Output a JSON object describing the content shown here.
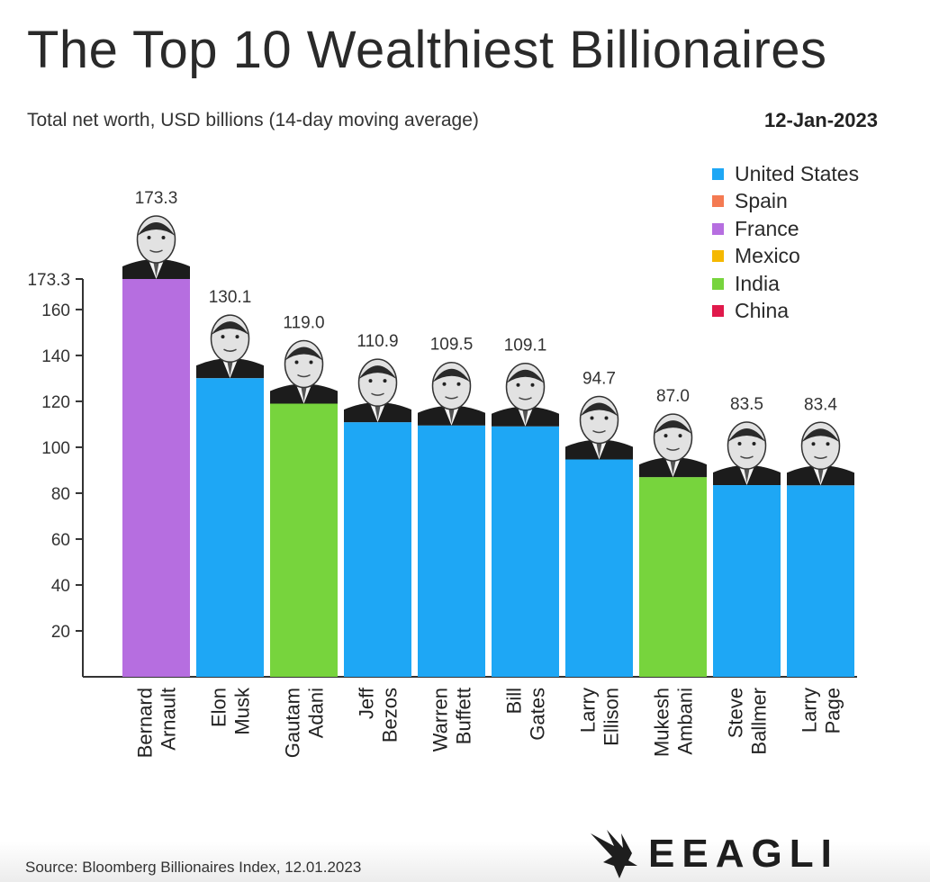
{
  "header": {
    "title": "The Top 10 Wealthiest Billionaires",
    "subtitle": "Total net worth, USD billions (14-day moving average)",
    "date": "12-Jan-2023"
  },
  "legend": [
    {
      "label": "United States",
      "color": "#1ea7f5"
    },
    {
      "label": "Spain",
      "color": "#f47a52"
    },
    {
      "label": "France",
      "color": "#b66ee0"
    },
    {
      "label": "Mexico",
      "color": "#f5b800"
    },
    {
      "label": "India",
      "color": "#77d43d"
    },
    {
      "label": "China",
      "color": "#e0194b"
    }
  ],
  "chart_data": {
    "type": "bar",
    "title": "The Top 10 Wealthiest Billionaires",
    "subtitle": "Total net worth, USD billions (14-day moving average)",
    "categories": [
      [
        "Bernard",
        "Arnault"
      ],
      [
        "Elon",
        "Musk"
      ],
      [
        "Gautam",
        "Adani"
      ],
      [
        "Jeff",
        "Bezos"
      ],
      [
        "Warren",
        "Buffett"
      ],
      [
        "Bill",
        "Gates"
      ],
      [
        "Larry",
        "Ellison"
      ],
      [
        "Mukesh",
        "Ambani"
      ],
      [
        "Steve",
        "Ballmer"
      ],
      [
        "Larry",
        "Page"
      ]
    ],
    "values": [
      173.3,
      130.1,
      119.0,
      110.9,
      109.5,
      109.1,
      94.7,
      87.0,
      83.5,
      83.4
    ],
    "value_labels": [
      "173.3",
      "130.1",
      "119.0",
      "110.9",
      "109.5",
      "109.1",
      "94.7",
      "87.0",
      "83.5",
      "83.4"
    ],
    "countries": [
      "France",
      "United States",
      "India",
      "United States",
      "United States",
      "United States",
      "United States",
      "India",
      "United States",
      "United States"
    ],
    "yticks": [
      20,
      40,
      60,
      80,
      100,
      120,
      140,
      160
    ],
    "ytick_labels": [
      "20",
      "40",
      "60",
      "80",
      "100",
      "120",
      "140",
      "160"
    ],
    "ymax_label": "173.3",
    "ylim": [
      0,
      173.3
    ],
    "grid": false,
    "legend_position": "top-right"
  },
  "footer": {
    "source": "Source: Bloomberg Billionaires Index, 12.01.2023",
    "brand": "EEAGLI"
  }
}
